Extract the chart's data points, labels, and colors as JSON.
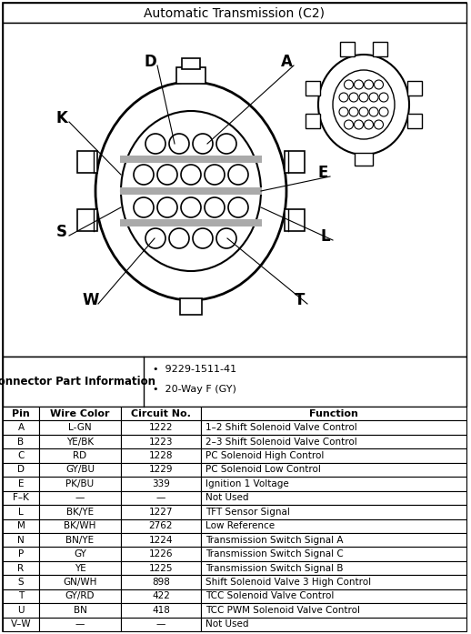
{
  "title": "Automatic Transmission (C2)",
  "connector_info_label": "Connector Part Information",
  "connector_bullets": [
    "9229-1511-41",
    "20-Way F (GY)"
  ],
  "table_headers": [
    "Pin",
    "Wire Color",
    "Circuit No.",
    "Function"
  ],
  "table_rows": [
    [
      "A",
      "L-GN",
      "1222",
      "1–2 Shift Solenoid Valve Control"
    ],
    [
      "B",
      "YE/BK",
      "1223",
      "2–3 Shift Solenoid Valve Control"
    ],
    [
      "C",
      "RD",
      "1228",
      "PC Solenoid High Control"
    ],
    [
      "D",
      "GY/BU",
      "1229",
      "PC Solenoid Low Control"
    ],
    [
      "E",
      "PK/BU",
      "339",
      "Ignition 1 Voltage"
    ],
    [
      "F–K",
      "—",
      "—",
      "Not Used"
    ],
    [
      "L",
      "BK/YE",
      "1227",
      "TFT Sensor Signal"
    ],
    [
      "M",
      "BK/WH",
      "2762",
      "Low Reference"
    ],
    [
      "N",
      "BN/YE",
      "1224",
      "Transmission Switch Signal A"
    ],
    [
      "P",
      "GY",
      "1226",
      "Transmission Switch Signal C"
    ],
    [
      "R",
      "YE",
      "1225",
      "Transmission Switch Signal B"
    ],
    [
      "S",
      "GN/WH",
      "898",
      "Shift Solenoid Valve 3 High Control"
    ],
    [
      "T",
      "GY/RD",
      "422",
      "TCC Solenoid Valve Control"
    ],
    [
      "U",
      "BN",
      "418",
      "TCC PWM Solenoid Valve Control"
    ],
    [
      "V–W",
      "—",
      "—",
      "Not Used"
    ]
  ]
}
